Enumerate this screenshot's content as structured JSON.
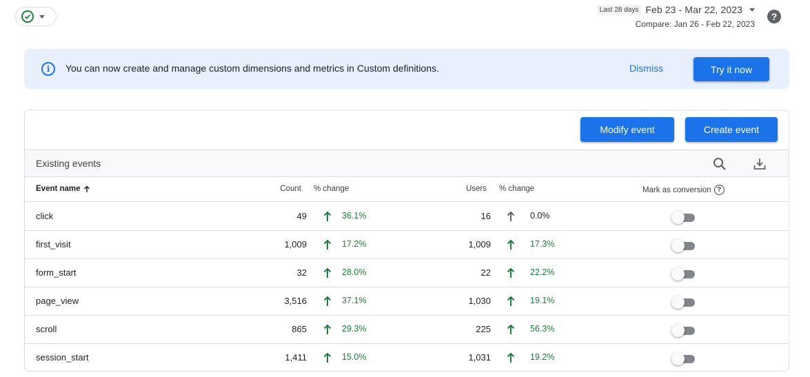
{
  "top": {
    "date_chip": "Last 28 days",
    "date_range": "Feb 23 - Mar 22, 2023",
    "compare": "Compare: Jan 26 - Feb 22, 2023",
    "help": "?"
  },
  "banner": {
    "info": "i",
    "text": "You can now create and manage custom dimensions and metrics in Custom definitions.",
    "dismiss": "Dismiss",
    "try": "Try it now"
  },
  "card": {
    "modify_label": "Modify event",
    "create_label": "Create event",
    "section_title": "Existing events",
    "headers": {
      "event_name": "Event name",
      "count": "Count",
      "pct_change_count": "% change",
      "users": "Users",
      "pct_change_users": "% change",
      "mark_conversion": "Mark as conversion",
      "help": "?"
    },
    "rows": [
      {
        "name": "click",
        "count": "49",
        "count_change": "36.1%",
        "users": "16",
        "users_change": "0.0%",
        "users_trend": "neutral",
        "conversion": false
      },
      {
        "name": "first_visit",
        "count": "1,009",
        "count_change": "17.2%",
        "users": "1,009",
        "users_change": "17.3%",
        "users_trend": "up",
        "conversion": false
      },
      {
        "name": "form_start",
        "count": "32",
        "count_change": "28.0%",
        "users": "22",
        "users_change": "22.2%",
        "users_trend": "up",
        "conversion": false
      },
      {
        "name": "page_view",
        "count": "3,516",
        "count_change": "37.1%",
        "users": "1,030",
        "users_change": "19.1%",
        "users_trend": "up",
        "conversion": false
      },
      {
        "name": "scroll",
        "count": "865",
        "count_change": "29.3%",
        "users": "225",
        "users_change": "56.3%",
        "users_trend": "up",
        "conversion": false
      },
      {
        "name": "session_start",
        "count": "1,411",
        "count_change": "15.0%",
        "users": "1,031",
        "users_change": "19.2%",
        "users_trend": "up",
        "conversion": false
      }
    ]
  },
  "colors": {
    "accent": "#1a73e8",
    "positive": "#188038",
    "neutral_arrow": "#5f6368",
    "banner_bg": "#e8f0fe"
  }
}
